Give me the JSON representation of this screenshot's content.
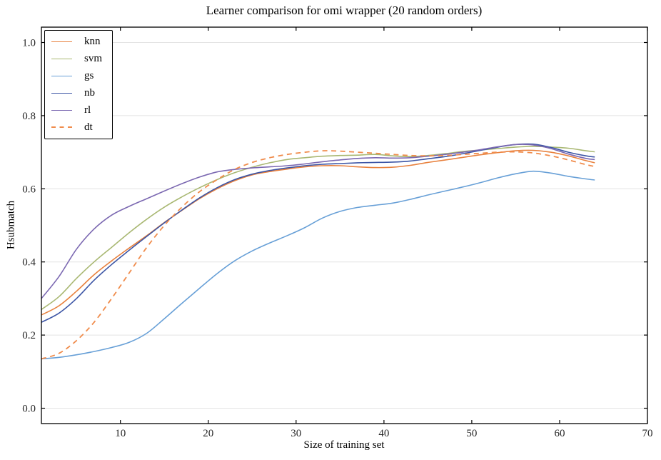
{
  "colors": {
    "background": "#ffffff",
    "grid": "#e4e4e4",
    "spine": "#000000",
    "tick": "#000000",
    "tick_label": "#262626"
  },
  "chart_data": {
    "type": "line",
    "title": "Learner comparison for omi wrapper (20 random orders)",
    "xlabel": "Size of training set",
    "ylabel": "Hsubmatch",
    "xlim": [
      1,
      70
    ],
    "ylim": [
      -0.042,
      1.042
    ],
    "x_ticks": [
      10,
      20,
      30,
      40,
      50,
      60,
      70
    ],
    "y_ticks": [
      0.0,
      0.2,
      0.4,
      0.6,
      0.8,
      1.0
    ],
    "y_tick_labels": [
      "0.0",
      "0.2",
      "0.4",
      "0.6",
      "0.8",
      "1.0"
    ],
    "grid": "horizontal",
    "legend_position": "upper-left",
    "x": [
      1,
      3,
      5,
      7,
      9,
      11,
      13,
      15,
      17,
      19,
      21,
      23,
      25,
      27,
      29,
      31,
      33,
      35,
      37,
      39,
      41,
      43,
      45,
      47,
      49,
      51,
      53,
      55,
      57,
      59,
      61,
      63,
      64
    ],
    "series": [
      {
        "name": "knn",
        "color": "#e8813e",
        "style": "solid",
        "y": [
          0.255,
          0.28,
          0.32,
          0.365,
          0.403,
          0.438,
          0.472,
          0.508,
          0.541,
          0.573,
          0.6,
          0.622,
          0.638,
          0.647,
          0.654,
          0.66,
          0.663,
          0.663,
          0.66,
          0.658,
          0.659,
          0.664,
          0.672,
          0.679,
          0.686,
          0.693,
          0.699,
          0.704,
          0.705,
          0.7,
          0.69,
          0.677,
          0.671
        ]
      },
      {
        "name": "svm",
        "color": "#a9b873",
        "style": "solid",
        "y": [
          0.27,
          0.305,
          0.355,
          0.4,
          0.44,
          0.48,
          0.517,
          0.55,
          0.578,
          0.603,
          0.625,
          0.644,
          0.659,
          0.671,
          0.68,
          0.685,
          0.689,
          0.691,
          0.692,
          0.694,
          0.69,
          0.688,
          0.691,
          0.696,
          0.702,
          0.706,
          0.71,
          0.714,
          0.716,
          0.714,
          0.711,
          0.704,
          0.701
        ]
      },
      {
        "name": "gs",
        "color": "#68a0d7",
        "style": "solid",
        "y": [
          0.135,
          0.139,
          0.146,
          0.155,
          0.166,
          0.18,
          0.205,
          0.245,
          0.287,
          0.328,
          0.368,
          0.403,
          0.43,
          0.452,
          0.472,
          0.494,
          0.52,
          0.538,
          0.549,
          0.555,
          0.561,
          0.571,
          0.583,
          0.594,
          0.605,
          0.617,
          0.63,
          0.641,
          0.648,
          0.643,
          0.634,
          0.627,
          0.624
        ]
      },
      {
        "name": "nb",
        "color": "#3c55a5",
        "style": "solid",
        "y": [
          0.235,
          0.26,
          0.3,
          0.35,
          0.393,
          0.432,
          0.47,
          0.507,
          0.542,
          0.575,
          0.603,
          0.625,
          0.64,
          0.65,
          0.657,
          0.663,
          0.667,
          0.669,
          0.671,
          0.672,
          0.673,
          0.676,
          0.682,
          0.688,
          0.696,
          0.705,
          0.714,
          0.721,
          0.722,
          0.713,
          0.7,
          0.69,
          0.687
        ]
      },
      {
        "name": "rl",
        "color": "#7b68b1",
        "style": "solid",
        "y": [
          0.3,
          0.36,
          0.435,
          0.49,
          0.528,
          0.552,
          0.573,
          0.594,
          0.614,
          0.632,
          0.646,
          0.653,
          0.657,
          0.66,
          0.663,
          0.668,
          0.674,
          0.679,
          0.683,
          0.685,
          0.684,
          0.685,
          0.689,
          0.694,
          0.7,
          0.707,
          0.715,
          0.721,
          0.72,
          0.71,
          0.695,
          0.683,
          0.68
        ]
      },
      {
        "name": "dt",
        "color": "#f08c4c",
        "style": "dashed",
        "y": [
          0.135,
          0.15,
          0.185,
          0.235,
          0.3,
          0.37,
          0.44,
          0.5,
          0.55,
          0.592,
          0.625,
          0.653,
          0.672,
          0.685,
          0.694,
          0.7,
          0.704,
          0.703,
          0.7,
          0.697,
          0.694,
          0.691,
          0.69,
          0.691,
          0.694,
          0.697,
          0.7,
          0.701,
          0.698,
          0.69,
          0.679,
          0.666,
          0.661
        ]
      }
    ]
  }
}
